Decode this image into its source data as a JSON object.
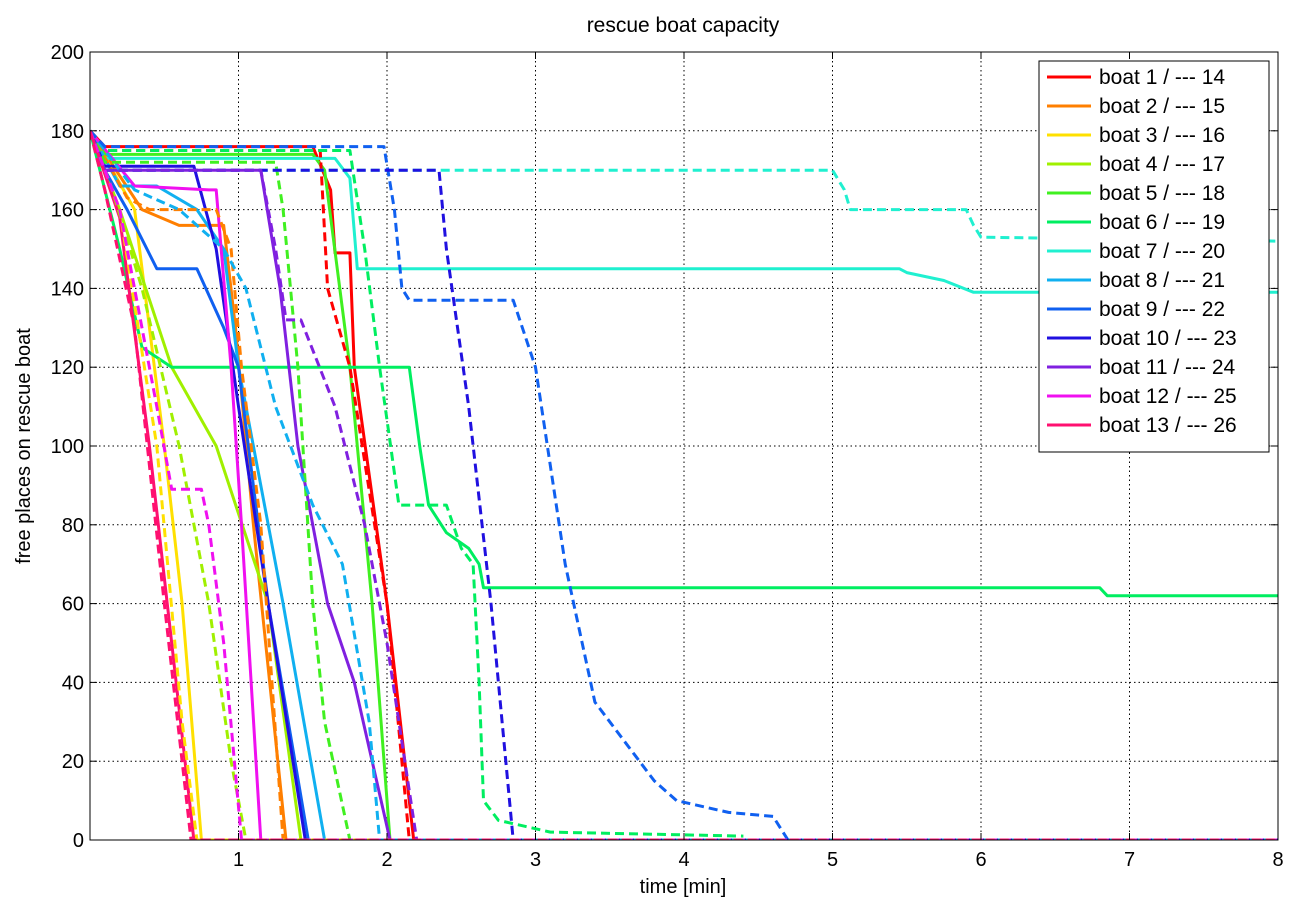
{
  "chart_data": {
    "type": "line",
    "title": "rescue boat capacity",
    "xlabel": "time [min]",
    "ylabel": "free places on rescue boat",
    "xlim": [
      0,
      8
    ],
    "ylim": [
      0,
      200
    ],
    "xticks": [
      "1",
      "2",
      "3",
      "4",
      "5",
      "6",
      "7",
      "8"
    ],
    "yticks": [
      "0",
      "20",
      "40",
      "60",
      "80",
      "100",
      "120",
      "140",
      "160",
      "180",
      "200"
    ],
    "grid": true,
    "legend_position": "top-right",
    "legend": [
      {
        "label": "boat 1 / --- 14",
        "color": "#ff0000"
      },
      {
        "label": "boat 2 / --- 15",
        "color": "#ff7f00"
      },
      {
        "label": "boat 3 / --- 16",
        "color": "#ffe000"
      },
      {
        "label": "boat 4 / --- 17",
        "color": "#a0f000"
      },
      {
        "label": "boat 5 / --- 18",
        "color": "#40f020"
      },
      {
        "label": "boat 6 / --- 19",
        "color": "#00ee60"
      },
      {
        "label": "boat 7 / --- 20",
        "color": "#20f0d0"
      },
      {
        "label": "boat 8 / --- 21",
        "color": "#10b0f0"
      },
      {
        "label": "boat 9 / --- 22",
        "color": "#1060f0"
      },
      {
        "label": "boat 10 / --- 23",
        "color": "#2010e0"
      },
      {
        "label": "boat 11 / --- 24",
        "color": "#8020e0"
      },
      {
        "label": "boat 12 / --- 25",
        "color": "#f010f0"
      },
      {
        "label": "boat 13 / --- 26",
        "color": "#ff1070"
      }
    ],
    "series": [
      {
        "boat": 1,
        "style": "solid",
        "color": "#ff0000",
        "x": [
          0,
          0.1,
          1.5,
          1.62,
          1.65,
          1.75,
          1.78,
          2.0,
          2.18,
          8
        ],
        "y": [
          180,
          176,
          176,
          165,
          149,
          149,
          120,
          60,
          0,
          0
        ]
      },
      {
        "boat": 2,
        "style": "solid",
        "color": "#ff7f00",
        "x": [
          0,
          0.35,
          0.6,
          0.9,
          0.98,
          1.1,
          1.32,
          8
        ],
        "y": [
          180,
          160,
          156,
          156,
          130,
          80,
          0,
          0
        ]
      },
      {
        "boat": 3,
        "style": "solid",
        "color": "#ffe000",
        "x": [
          0,
          0.3,
          0.5,
          0.62,
          0.75,
          8
        ],
        "y": [
          180,
          160,
          100,
          60,
          0,
          0
        ]
      },
      {
        "boat": 4,
        "style": "solid",
        "color": "#a0f000",
        "x": [
          0,
          0.2,
          0.55,
          0.85,
          1.2,
          1.42,
          8
        ],
        "y": [
          180,
          160,
          120,
          100,
          60,
          0,
          0
        ]
      },
      {
        "boat": 5,
        "style": "solid",
        "color": "#40f020",
        "x": [
          0,
          0.1,
          1.5,
          1.58,
          1.75,
          1.9,
          2.02,
          8
        ],
        "y": [
          180,
          174,
          174,
          170,
          120,
          60,
          0,
          0
        ]
      },
      {
        "boat": 6,
        "style": "solid",
        "color": "#00ee60",
        "x": [
          0,
          0.2,
          0.35,
          0.55,
          2.15,
          2.22,
          2.28,
          2.4,
          2.55,
          2.62,
          2.65,
          6.8,
          6.85,
          8
        ],
        "y": [
          180,
          150,
          125,
          120,
          120,
          100,
          85,
          78,
          74,
          70,
          64,
          64,
          62,
          62
        ]
      },
      {
        "boat": 7,
        "style": "solid",
        "color": "#20f0d0",
        "x": [
          0,
          0.1,
          1.65,
          1.75,
          1.8,
          5.45,
          5.5,
          5.75,
          5.95,
          6.0,
          8
        ],
        "y": [
          180,
          173,
          173,
          168,
          145,
          145,
          144,
          142,
          139,
          139,
          139
        ]
      },
      {
        "boat": 8,
        "style": "solid",
        "color": "#10b0f0",
        "x": [
          0,
          0.2,
          0.45,
          0.72,
          0.9,
          1.0,
          1.3,
          1.58,
          8
        ],
        "y": [
          180,
          166,
          166,
          160,
          150,
          120,
          60,
          0,
          0
        ]
      },
      {
        "boat": 9,
        "style": "solid",
        "color": "#1060f0",
        "x": [
          0,
          0.1,
          0.25,
          0.45,
          0.6,
          0.72,
          0.9,
          1.0,
          1.2,
          1.47,
          8
        ],
        "y": [
          180,
          170,
          160,
          145,
          145,
          145,
          130,
          120,
          60,
          0,
          0
        ]
      },
      {
        "boat": 10,
        "style": "solid",
        "color": "#2010e0",
        "x": [
          0,
          0.1,
          0.7,
          0.85,
          1.0,
          1.2,
          1.45,
          8
        ],
        "y": [
          180,
          171,
          171,
          150,
          110,
          60,
          0,
          0
        ]
      },
      {
        "boat": 11,
        "style": "solid",
        "color": "#8020e0",
        "x": [
          0,
          0.1,
          1.15,
          1.28,
          1.4,
          1.6,
          1.78,
          2.02,
          8
        ],
        "y": [
          180,
          170,
          170,
          140,
          100,
          60,
          40,
          0,
          0
        ]
      },
      {
        "boat": 12,
        "style": "solid",
        "color": "#f010f0",
        "x": [
          0,
          0.3,
          0.8,
          0.85,
          0.95,
          1.02,
          1.15,
          8
        ],
        "y": [
          180,
          166,
          165,
          165,
          120,
          80,
          0,
          0
        ]
      },
      {
        "boat": 13,
        "style": "solid",
        "color": "#ff1070",
        "x": [
          0,
          0.2,
          0.4,
          0.55,
          0.7,
          8
        ],
        "y": [
          180,
          158,
          100,
          50,
          0,
          0
        ]
      },
      {
        "boat": 14,
        "style": "dashed",
        "color": "#ff0000",
        "x": [
          0,
          0.1,
          1.55,
          1.6,
          1.75,
          2.0,
          2.15,
          8
        ],
        "y": [
          180,
          175,
          175,
          140,
          120,
          60,
          0,
          0
        ]
      },
      {
        "boat": 15,
        "style": "dashed",
        "color": "#ff7f00",
        "x": [
          0,
          0.25,
          0.4,
          0.55,
          0.85,
          0.95,
          1.02,
          1.15,
          1.3,
          8
        ],
        "y": [
          180,
          163,
          160,
          160,
          160,
          150,
          120,
          80,
          0,
          0
        ]
      },
      {
        "boat": 16,
        "style": "dashed",
        "color": "#ffe000",
        "x": [
          0,
          0.2,
          0.45,
          0.62,
          0.72,
          8
        ],
        "y": [
          180,
          160,
          100,
          30,
          0,
          0
        ]
      },
      {
        "boat": 17,
        "style": "dashed",
        "color": "#a0f000",
        "x": [
          0,
          0.15,
          0.35,
          0.6,
          0.8,
          0.95,
          1.05,
          8
        ],
        "y": [
          180,
          165,
          140,
          100,
          60,
          20,
          0,
          0
        ]
      },
      {
        "boat": 18,
        "style": "dashed",
        "color": "#40f020",
        "x": [
          0,
          0.1,
          1.25,
          1.3,
          1.4,
          1.5,
          1.58,
          1.75,
          8
        ],
        "y": [
          180,
          172,
          172,
          160,
          120,
          60,
          30,
          0,
          0
        ]
      },
      {
        "boat": 19,
        "style": "dashed",
        "color": "#00ee60",
        "x": [
          0,
          0.1,
          1.75,
          1.85,
          1.95,
          2.08,
          2.4,
          2.5,
          2.58,
          2.62,
          2.65,
          2.75,
          3.1,
          4.4
        ],
        "y": [
          180,
          175,
          175,
          150,
          120,
          85,
          85,
          74,
          70,
          40,
          10,
          5,
          2,
          1
        ]
      },
      {
        "boat": 20,
        "style": "dashed",
        "color": "#20f0d0",
        "x": [
          0,
          0.1,
          2.4,
          5.0,
          5.08,
          5.12,
          5.9,
          5.95,
          6.0,
          8
        ],
        "y": [
          180,
          170,
          170,
          170,
          165,
          160,
          160,
          156,
          153,
          152
        ]
      },
      {
        "boat": 21,
        "style": "dashed",
        "color": "#10b0f0",
        "x": [
          0,
          0.3,
          0.6,
          0.75,
          0.9,
          1.05,
          1.25,
          1.5,
          1.7,
          1.88,
          1.95,
          8
        ],
        "y": [
          180,
          165,
          160,
          155,
          150,
          140,
          110,
          85,
          70,
          30,
          0,
          0
        ]
      },
      {
        "boat": 22,
        "style": "dashed",
        "color": "#1060f0",
        "x": [
          0,
          0.1,
          1.98,
          2.05,
          2.1,
          2.15,
          2.85,
          3.0,
          3.2,
          3.4,
          3.6,
          3.8,
          3.95,
          4.3,
          4.6,
          4.65,
          4.7,
          8
        ],
        "y": [
          180,
          176,
          176,
          160,
          140,
          137,
          137,
          120,
          70,
          35,
          25,
          15,
          10,
          7,
          6,
          3,
          0,
          0
        ]
      },
      {
        "boat": 23,
        "style": "dashed",
        "color": "#2010e0",
        "x": [
          0,
          0.1,
          2.35,
          2.4,
          2.55,
          2.7,
          2.85,
          8
        ],
        "y": [
          180,
          170,
          170,
          150,
          110,
          60,
          0,
          0
        ]
      },
      {
        "boat": 24,
        "style": "dashed",
        "color": "#8020e0",
        "x": [
          0,
          0.1,
          1.15,
          1.25,
          1.32,
          1.42,
          1.65,
          1.85,
          2.0,
          2.2,
          8
        ],
        "y": [
          180,
          170,
          170,
          150,
          132,
          132,
          110,
          80,
          50,
          0,
          0
        ]
      },
      {
        "boat": 25,
        "style": "dashed",
        "color": "#f010f0",
        "x": [
          0,
          0.2,
          0.45,
          0.55,
          0.75,
          0.8,
          0.9,
          1.02,
          8
        ],
        "y": [
          180,
          160,
          110,
          89,
          89,
          80,
          50,
          0,
          0
        ]
      },
      {
        "boat": 26,
        "style": "dashed",
        "color": "#ff1070",
        "x": [
          0,
          0.1,
          0.3,
          0.5,
          0.68,
          8
        ],
        "y": [
          180,
          165,
          130,
          60,
          0,
          0
        ]
      }
    ]
  }
}
